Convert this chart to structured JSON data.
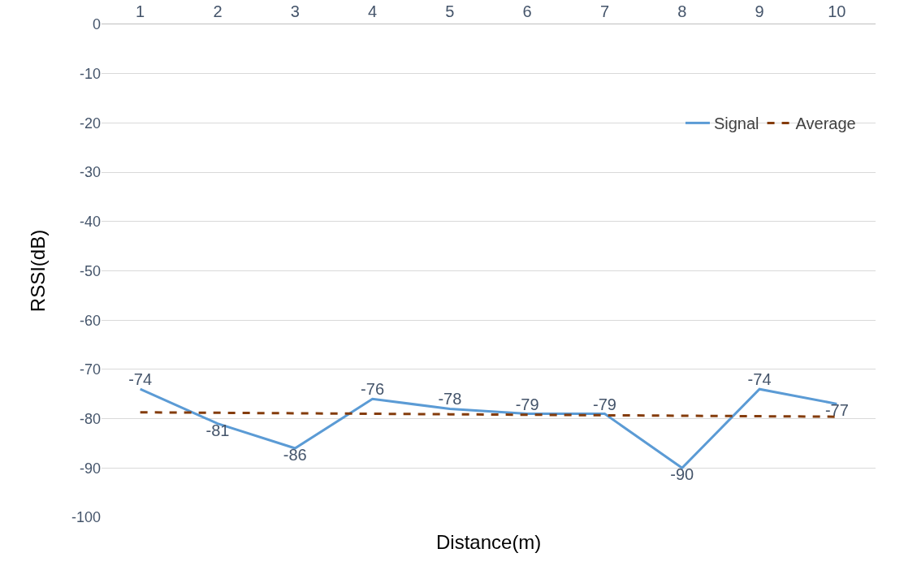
{
  "chart_data": {
    "type": "line",
    "xlabel": "Distance(m)",
    "ylabel": "RSSI(dB)",
    "categories": [
      "1",
      "2",
      "3",
      "4",
      "5",
      "6",
      "7",
      "8",
      "9",
      "10"
    ],
    "series": [
      {
        "name": "Signal",
        "color": "#5b9bd5",
        "line_style": "solid",
        "values": [
          -74,
          -81,
          -86,
          -76,
          -78,
          -79,
          -79,
          -90,
          -74,
          -77
        ],
        "value_labels": [
          "-74",
          "-81",
          "-86",
          "-76",
          "-78",
          "-79",
          "-79",
          "-90",
          "-74",
          "-77"
        ]
      },
      {
        "name": "Average",
        "color": "#843c0c",
        "line_style": "dashed",
        "values": [
          -78.7,
          -78.8,
          -78.9,
          -79.0,
          -79.1,
          -79.2,
          -79.3,
          -79.4,
          -79.5,
          -79.6
        ]
      }
    ],
    "ylim": [
      -100,
      0
    ],
    "yticks": [
      0,
      -10,
      -20,
      -30,
      -40,
      -50,
      -60,
      -70,
      -80,
      -90,
      -100
    ],
    "grid": "y",
    "legend": "top right",
    "marker": "none"
  }
}
